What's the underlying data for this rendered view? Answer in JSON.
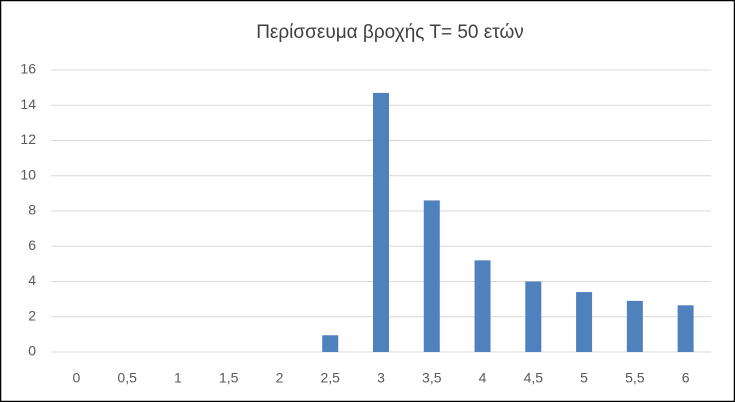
{
  "chart_data": {
    "type": "bar",
    "title": "Περίσσευμα βροχής Τ= 50 ετών",
    "categories": [
      "0",
      "0,5",
      "1",
      "1,5",
      "2",
      "2,5",
      "3",
      "3,5",
      "4",
      "4,5",
      "5",
      "5,5",
      "6"
    ],
    "values": [
      0,
      0,
      0,
      0,
      0,
      0.95,
      14.7,
      8.6,
      5.2,
      4.0,
      3.4,
      2.9,
      2.65
    ],
    "color": "#4f81bd",
    "ylim": [
      0,
      16
    ],
    "yticks": [
      0,
      2,
      4,
      6,
      8,
      10,
      12,
      14,
      16
    ],
    "grid": true
  }
}
